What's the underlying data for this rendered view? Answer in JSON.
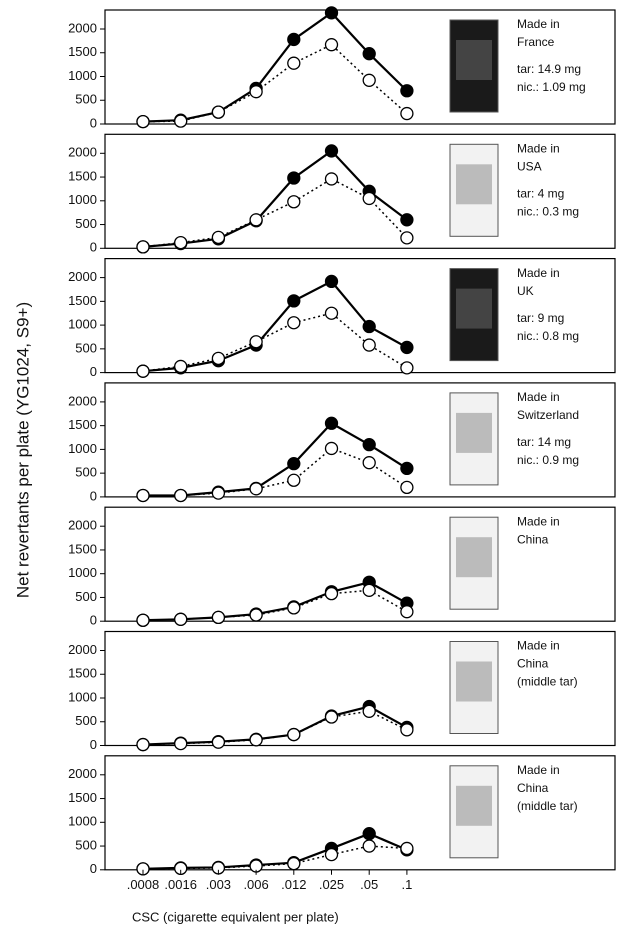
{
  "ylabel": "Net revertants per plate (YG1024, S9+)",
  "xlabel": "CSC (cigarette equivalent per plate)",
  "chart_data": [
    {
      "type": "line",
      "notes": [
        "Made in",
        "France"
      ],
      "specs": [
        "tar: 14.9 mg",
        "nic.: 1.09 mg"
      ],
      "pack": "dark",
      "ylim": [
        0,
        2400
      ],
      "yticks": [
        0,
        500,
        1000,
        1500,
        2000
      ],
      "series": [
        {
          "color": "#000000",
          "marker_fill": "#000000",
          "dashed": false,
          "values": [
            50,
            80,
            250,
            750,
            1780,
            2340,
            1480,
            700
          ]
        },
        {
          "color": "#000000",
          "marker_fill": "#ffffff",
          "dashed": true,
          "values": [
            50,
            60,
            250,
            680,
            1280,
            1670,
            920,
            220
          ]
        }
      ]
    },
    {
      "type": "line",
      "notes": [
        "Made in",
        "USA"
      ],
      "specs": [
        "tar: 4 mg",
        "nic.: 0.3 mg"
      ],
      "pack": "light",
      "ylim": [
        0,
        2400
      ],
      "yticks": [
        0,
        500,
        1000,
        1500,
        2000
      ],
      "series": [
        {
          "color": "#000000",
          "marker_fill": "#000000",
          "dashed": false,
          "values": [
            30,
            100,
            200,
            580,
            1480,
            2050,
            1200,
            600
          ]
        },
        {
          "color": "#000000",
          "marker_fill": "#ffffff",
          "dashed": true,
          "values": [
            30,
            120,
            230,
            600,
            980,
            1460,
            1050,
            220
          ]
        }
      ]
    },
    {
      "type": "line",
      "notes": [
        "Made in",
        "UK"
      ],
      "specs": [
        "tar: 9 mg",
        "nic.: 0.8 mg"
      ],
      "pack": "dark",
      "ylim": [
        0,
        2400
      ],
      "yticks": [
        0,
        500,
        1000,
        1500,
        2000
      ],
      "series": [
        {
          "color": "#000000",
          "marker_fill": "#000000",
          "dashed": false,
          "values": [
            30,
            100,
            250,
            580,
            1510,
            1920,
            970,
            530
          ]
        },
        {
          "color": "#000000",
          "marker_fill": "#ffffff",
          "dashed": true,
          "values": [
            30,
            130,
            300,
            650,
            1050,
            1250,
            580,
            100
          ]
        }
      ]
    },
    {
      "type": "line",
      "notes": [
        "Made in",
        "Switzerland"
      ],
      "specs": [
        "tar: 14 mg",
        "nic.: 0.9 mg"
      ],
      "pack": "light",
      "ylim": [
        0,
        2400
      ],
      "yticks": [
        0,
        500,
        1000,
        1500,
        2000
      ],
      "series": [
        {
          "color": "#000000",
          "marker_fill": "#000000",
          "dashed": false,
          "values": [
            30,
            30,
            100,
            180,
            700,
            1550,
            1100,
            600
          ]
        },
        {
          "color": "#000000",
          "marker_fill": "#ffffff",
          "dashed": true,
          "values": [
            30,
            30,
            80,
            170,
            350,
            1020,
            720,
            200
          ]
        }
      ]
    },
    {
      "type": "line",
      "notes": [
        "Made in",
        "China"
      ],
      "specs": [],
      "pack": "light",
      "ylim": [
        0,
        2400
      ],
      "yticks": [
        0,
        500,
        1000,
        1500,
        2000
      ],
      "series": [
        {
          "color": "#000000",
          "marker_fill": "#000000",
          "dashed": false,
          "values": [
            20,
            40,
            80,
            150,
            300,
            620,
            820,
            380
          ]
        },
        {
          "color": "#000000",
          "marker_fill": "#ffffff",
          "dashed": true,
          "values": [
            20,
            40,
            80,
            130,
            280,
            580,
            650,
            200
          ]
        }
      ]
    },
    {
      "type": "line",
      "notes": [
        "Made in",
        "China",
        "(middle tar)"
      ],
      "specs": [],
      "pack": "light",
      "ylim": [
        0,
        2400
      ],
      "yticks": [
        0,
        500,
        1000,
        1500,
        2000
      ],
      "series": [
        {
          "color": "#000000",
          "marker_fill": "#000000",
          "dashed": false,
          "values": [
            20,
            50,
            80,
            130,
            230,
            620,
            820,
            380
          ]
        },
        {
          "color": "#000000",
          "marker_fill": "#ffffff",
          "dashed": true,
          "values": [
            20,
            40,
            70,
            120,
            230,
            600,
            720,
            330
          ]
        }
      ]
    },
    {
      "type": "line",
      "notes": [
        "Made in",
        "China",
        "(middle tar)"
      ],
      "specs": [],
      "pack": "light",
      "ylim": [
        0,
        2400
      ],
      "yticks": [
        0,
        500,
        1000,
        1500,
        2000
      ],
      "categories": [
        ".0008",
        ".0016",
        ".003",
        ".006",
        ".012",
        ".025",
        ".05",
        ".1"
      ],
      "series": [
        {
          "color": "#000000",
          "marker_fill": "#000000",
          "dashed": false,
          "values": [
            20,
            40,
            50,
            100,
            150,
            450,
            760,
            420
          ]
        },
        {
          "color": "#000000",
          "marker_fill": "#ffffff",
          "dashed": true,
          "values": [
            20,
            30,
            40,
            80,
            130,
            320,
            500,
            450
          ]
        }
      ]
    }
  ]
}
